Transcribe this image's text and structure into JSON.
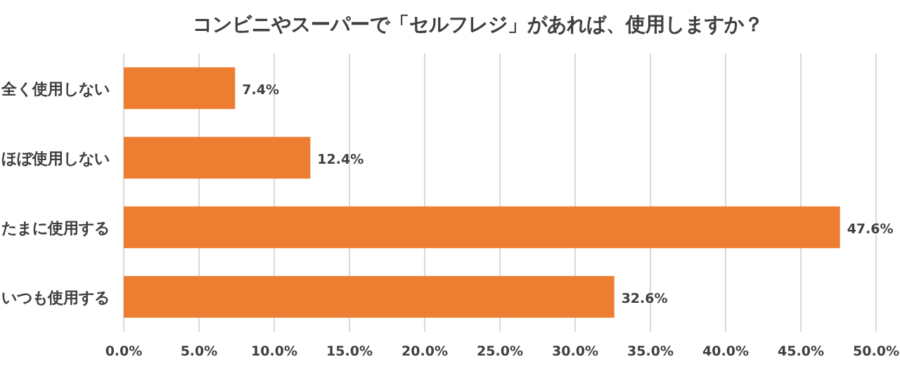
{
  "chart_data": {
    "type": "bar",
    "orientation": "horizontal",
    "title": "コンビニやスーパーで「セルフレジ」があれば、使用しますか？",
    "categories": [
      "全く使用しない",
      "ほぼ使用しない",
      "たまに使用する",
      "いつも使用する"
    ],
    "values": [
      7.4,
      12.4,
      47.6,
      32.6
    ],
    "value_labels": [
      "7.4%",
      "12.4%",
      "47.6%",
      "32.6%"
    ],
    "color": "#ed7d31",
    "xlim": [
      0,
      50
    ],
    "xticks": [
      {
        "value": 0,
        "label": "0.0%"
      },
      {
        "value": 5,
        "label": "5.0%"
      },
      {
        "value": 10,
        "label": "10.0%"
      },
      {
        "value": 15,
        "label": "15.0%"
      },
      {
        "value": 20,
        "label": "20.0%"
      },
      {
        "value": 25,
        "label": "25.0%"
      },
      {
        "value": 30,
        "label": "30.0%"
      },
      {
        "value": 35,
        "label": "35.0%"
      },
      {
        "value": 40,
        "label": "40.0%"
      },
      {
        "value": 45,
        "label": "45.0%"
      },
      {
        "value": 50,
        "label": "50.0%"
      }
    ],
    "grid": "x"
  }
}
